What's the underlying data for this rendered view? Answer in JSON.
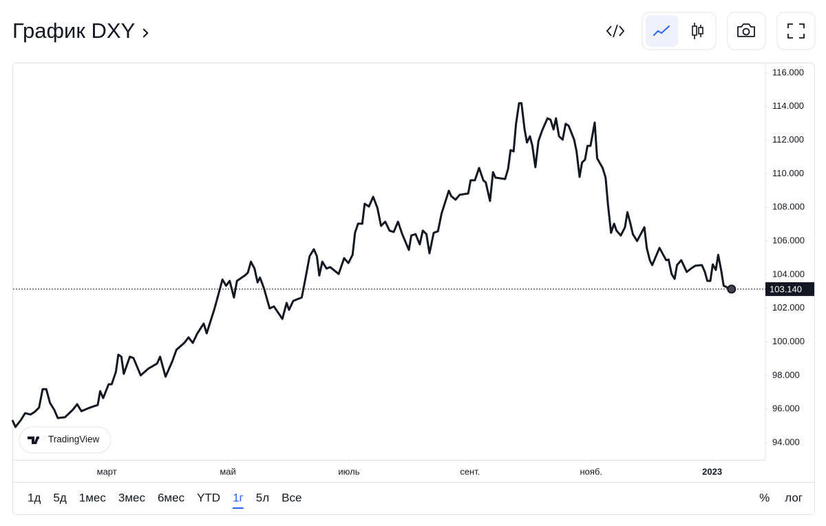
{
  "header": {
    "title": "График DXY"
  },
  "watermark": "TradingView",
  "toolbar": {
    "ranges": [
      "1д",
      "5д",
      "1мес",
      "3мес",
      "6мес",
      "YTD",
      "1г",
      "5л",
      "Все"
    ],
    "active": 6,
    "options": [
      "%",
      "лог"
    ]
  },
  "chart_data": {
    "type": "line",
    "color": "#131722",
    "x": [
      0.44,
      0.49,
      0.58,
      0.65,
      0.74,
      0.81,
      0.88,
      0.94,
      1.0,
      1.06,
      1.13,
      1.19,
      1.31,
      1.44,
      1.51,
      1.58,
      1.72,
      1.85,
      1.89,
      1.94,
      2.03,
      2.08,
      2.15,
      2.19,
      2.24,
      2.28,
      2.38,
      2.44,
      2.56,
      2.69,
      2.83,
      2.88,
      2.97,
      3.08,
      3.15,
      3.28,
      3.35,
      3.42,
      3.49,
      3.6,
      3.65,
      3.78,
      3.91,
      3.97,
      4.03,
      4.1,
      4.15,
      4.28,
      4.33,
      4.38,
      4.44,
      4.49,
      4.53,
      4.6,
      4.69,
      4.76,
      4.9,
      4.97,
      5.01,
      5.08,
      5.22,
      5.28,
      5.35,
      5.42,
      5.47,
      5.51,
      5.56,
      5.63,
      5.69,
      5.83,
      5.92,
      5.99,
      6.06,
      6.1,
      6.15,
      6.22,
      6.26,
      6.33,
      6.4,
      6.47,
      6.53,
      6.6,
      6.67,
      6.74,
      6.81,
      6.88,
      6.99,
      7.03,
      7.1,
      7.17,
      7.22,
      7.28,
      7.33,
      7.4,
      7.47,
      7.53,
      7.65,
      7.69,
      7.76,
      7.83,
      7.97,
      8.01,
      8.08,
      8.15,
      8.22,
      8.26,
      8.33,
      8.38,
      8.42,
      8.58,
      8.63,
      8.67,
      8.72,
      8.76,
      8.81,
      8.85,
      8.9,
      8.94,
      8.99,
      9.03,
      9.08,
      9.13,
      9.19,
      9.28,
      9.33,
      9.38,
      9.42,
      9.47,
      9.53,
      9.58,
      9.63,
      9.72,
      9.76,
      9.81,
      9.85,
      9.9,
      9.94,
      9.99,
      10.06,
      10.1,
      10.19,
      10.24,
      10.28,
      10.33,
      10.38,
      10.42,
      10.49,
      10.56,
      10.6,
      10.65,
      10.69,
      10.76,
      10.88,
      10.92,
      10.97,
      11.01,
      11.13,
      11.24,
      11.28,
      11.33,
      11.38,
      11.42,
      11.49,
      11.58,
      11.65,
      11.72,
      11.83,
      11.88,
      11.92,
      11.97,
      12.01,
      12.06,
      12.1,
      12.15,
      12.19,
      12.26,
      12.32
    ],
    "values": [
      95.35,
      94.94,
      95.35,
      95.76,
      95.68,
      95.84,
      96.09,
      97.19,
      97.19,
      96.38,
      95.97,
      95.47,
      95.52,
      95.97,
      96.29,
      95.88,
      96.09,
      96.25,
      97.07,
      96.66,
      97.48,
      97.48,
      98.22,
      99.24,
      99.12,
      98.1,
      99.12,
      99.04,
      98.01,
      98.42,
      98.71,
      99.12,
      97.93,
      98.83,
      99.53,
      99.94,
      100.27,
      99.94,
      100.47,
      101.09,
      100.51,
      101.99,
      103.71,
      103.34,
      103.63,
      102.64,
      103.63,
      103.95,
      104.12,
      104.77,
      104.36,
      103.54,
      103.83,
      103.14,
      101.99,
      102.11,
      101.37,
      102.32,
      101.91,
      102.44,
      102.64,
      103.75,
      105.1,
      105.51,
      105.1,
      103.95,
      104.77,
      104.36,
      104.45,
      104.04,
      104.98,
      104.69,
      105.18,
      106.49,
      107.03,
      107.03,
      108.22,
      108.05,
      108.63,
      107.97,
      106.9,
      107.15,
      106.62,
      106.54,
      107.15,
      106.41,
      105.47,
      106.33,
      106.41,
      105.8,
      106.62,
      106.41,
      105.27,
      106.49,
      106.58,
      107.64,
      108.99,
      108.67,
      108.46,
      108.75,
      108.83,
      109.61,
      109.61,
      110.35,
      109.61,
      109.49,
      108.38,
      110.1,
      109.77,
      109.69,
      110.31,
      111.41,
      111.33,
      112.97,
      114.2,
      114.2,
      112.68,
      111.86,
      112.23,
      111.66,
      110.39,
      111.94,
      112.56,
      113.3,
      113.21,
      112.64,
      113.3,
      112.23,
      112.03,
      112.97,
      112.85,
      112.03,
      111.33,
      109.81,
      110.67,
      110.84,
      111.66,
      111.66,
      113.05,
      110.92,
      110.35,
      109.77,
      108.13,
      106.49,
      107.03,
      106.62,
      106.33,
      106.82,
      107.72,
      107.03,
      106.41,
      106.0,
      106.82,
      105.59,
      104.86,
      104.57,
      105.59,
      104.86,
      104.9,
      104.04,
      103.75,
      104.57,
      104.86,
      104.16,
      104.36,
      104.53,
      104.57,
      104.16,
      103.63,
      103.63,
      104.61,
      104.28,
      105.18,
      104.24,
      103.34,
      103.22,
      103.14
    ],
    "last_price": {
      "value": 103.14,
      "label": "103.140"
    },
    "xlim": [
      0.44,
      12.88
    ],
    "xticks": [
      {
        "value": 2,
        "label": "март"
      },
      {
        "value": 4,
        "label": "май"
      },
      {
        "value": 6,
        "label": "июль"
      },
      {
        "value": 8,
        "label": "сент."
      },
      {
        "value": 10,
        "label": "нояб."
      },
      {
        "value": 12,
        "label": "2023"
      }
    ],
    "ylim": [
      92.98,
      116.61
    ],
    "yticks": [
      {
        "value": 94,
        "label": "94.000"
      },
      {
        "value": 96,
        "label": "96.000"
      },
      {
        "value": 98,
        "label": "98.000"
      },
      {
        "value": 100,
        "label": "100.000"
      },
      {
        "value": 102,
        "label": "102.000"
      },
      {
        "value": 104,
        "label": "104.000"
      },
      {
        "value": 106,
        "label": "106.000"
      },
      {
        "value": 108,
        "label": "108.000"
      },
      {
        "value": 110,
        "label": "110.000"
      },
      {
        "value": 112,
        "label": "112.000"
      },
      {
        "value": 114,
        "label": "114.000"
      },
      {
        "value": 116,
        "label": "116.000"
      }
    ],
    "grid": false
  }
}
